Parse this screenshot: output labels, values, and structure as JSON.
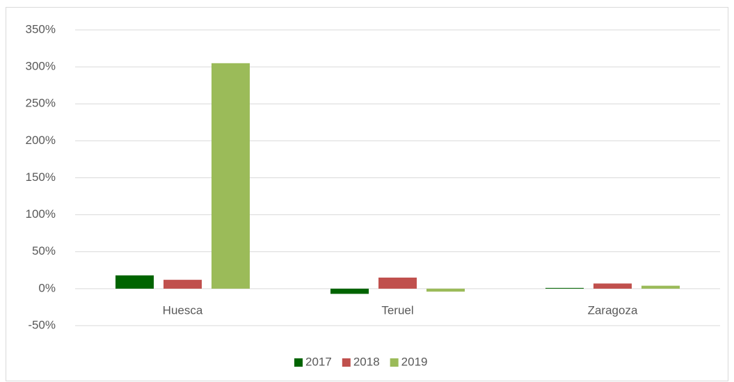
{
  "chart_data": {
    "type": "bar",
    "categories": [
      "Huesca",
      "Teruel",
      "Zaragoza"
    ],
    "series": [
      {
        "name": "2017",
        "color": "#006400",
        "values": [
          18,
          -7,
          1
        ]
      },
      {
        "name": "2018",
        "color": "#c0504d",
        "values": [
          12,
          15,
          7
        ]
      },
      {
        "name": "2019",
        "color": "#9bbb59",
        "values": [
          305,
          -4,
          4
        ]
      }
    ],
    "ylim": [
      -50,
      350
    ],
    "yticks": [
      {
        "value": -50,
        "label": "-50%"
      },
      {
        "value": 0,
        "label": "0%"
      },
      {
        "value": 50,
        "label": "50%"
      },
      {
        "value": 100,
        "label": "100%"
      },
      {
        "value": 150,
        "label": "150%"
      },
      {
        "value": 200,
        "label": "200%"
      },
      {
        "value": 250,
        "label": "250%"
      },
      {
        "value": 300,
        "label": "300%"
      },
      {
        "value": 350,
        "label": "350%"
      }
    ],
    "grid": true,
    "legend": "bottom"
  }
}
